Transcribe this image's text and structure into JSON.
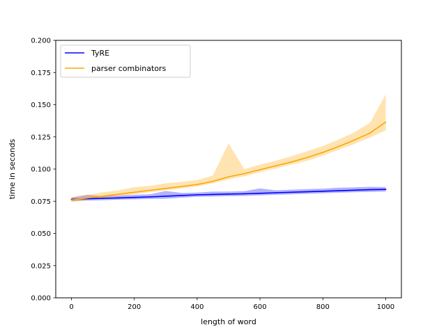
{
  "chart_data": {
    "type": "line",
    "title": "",
    "xlabel": "length of word",
    "ylabel": "time in seconds",
    "xlim": [
      -50,
      1050
    ],
    "ylim": [
      0.0,
      0.2
    ],
    "xticks": [
      0,
      200,
      400,
      600,
      800,
      1000
    ],
    "xtick_labels": [
      "0",
      "200",
      "400",
      "600",
      "800",
      "1000"
    ],
    "yticks": [
      0.0,
      0.025,
      0.05,
      0.075,
      0.1,
      0.125,
      0.15,
      0.175,
      0.2
    ],
    "ytick_labels": [
      "0.000",
      "0.025",
      "0.050",
      "0.075",
      "0.100",
      "0.125",
      "0.150",
      "0.175",
      "0.200"
    ],
    "grid": false,
    "legend": "top-left",
    "x": [
      0,
      50,
      100,
      150,
      200,
      250,
      300,
      350,
      400,
      450,
      500,
      550,
      600,
      650,
      700,
      750,
      800,
      850,
      900,
      950,
      1000
    ],
    "series": [
      {
        "name": "TyRE",
        "color": "#0000ff",
        "values": [
          0.0765,
          0.077,
          0.0773,
          0.0776,
          0.078,
          0.0784,
          0.079,
          0.0795,
          0.08,
          0.0803,
          0.0806,
          0.0808,
          0.0812,
          0.0816,
          0.082,
          0.0824,
          0.0828,
          0.0832,
          0.0836,
          0.084,
          0.0842
        ],
        "band_low": [
          0.075,
          0.0755,
          0.0758,
          0.0762,
          0.0765,
          0.0768,
          0.077,
          0.0778,
          0.0785,
          0.0787,
          0.079,
          0.0792,
          0.0796,
          0.08,
          0.0804,
          0.0808,
          0.0812,
          0.0816,
          0.082,
          0.0823,
          0.0826
        ],
        "band_high": [
          0.078,
          0.08,
          0.079,
          0.0795,
          0.08,
          0.0805,
          0.083,
          0.0815,
          0.0818,
          0.0825,
          0.0825,
          0.0828,
          0.085,
          0.0835,
          0.084,
          0.0845,
          0.0848,
          0.0855,
          0.0858,
          0.0862,
          0.086
        ]
      },
      {
        "name": "parser combinators",
        "color": "#ffa500",
        "values": [
          0.076,
          0.0775,
          0.079,
          0.0805,
          0.082,
          0.0835,
          0.085,
          0.0865,
          0.088,
          0.0905,
          0.094,
          0.0965,
          0.0995,
          0.1025,
          0.1055,
          0.109,
          0.113,
          0.1175,
          0.1225,
          0.128,
          0.1365
        ],
        "band_low": [
          0.0745,
          0.076,
          0.0775,
          0.079,
          0.0805,
          0.082,
          0.0835,
          0.085,
          0.0865,
          0.089,
          0.092,
          0.0945,
          0.0975,
          0.1005,
          0.1035,
          0.1065,
          0.1105,
          0.115,
          0.1195,
          0.1245,
          0.13
        ],
        "band_high": [
          0.078,
          0.08,
          0.082,
          0.0835,
          0.086,
          0.087,
          0.089,
          0.09,
          0.0915,
          0.095,
          0.12,
          0.1,
          0.1035,
          0.1065,
          0.11,
          0.114,
          0.118,
          0.123,
          0.1285,
          0.136,
          0.158
        ]
      }
    ]
  }
}
